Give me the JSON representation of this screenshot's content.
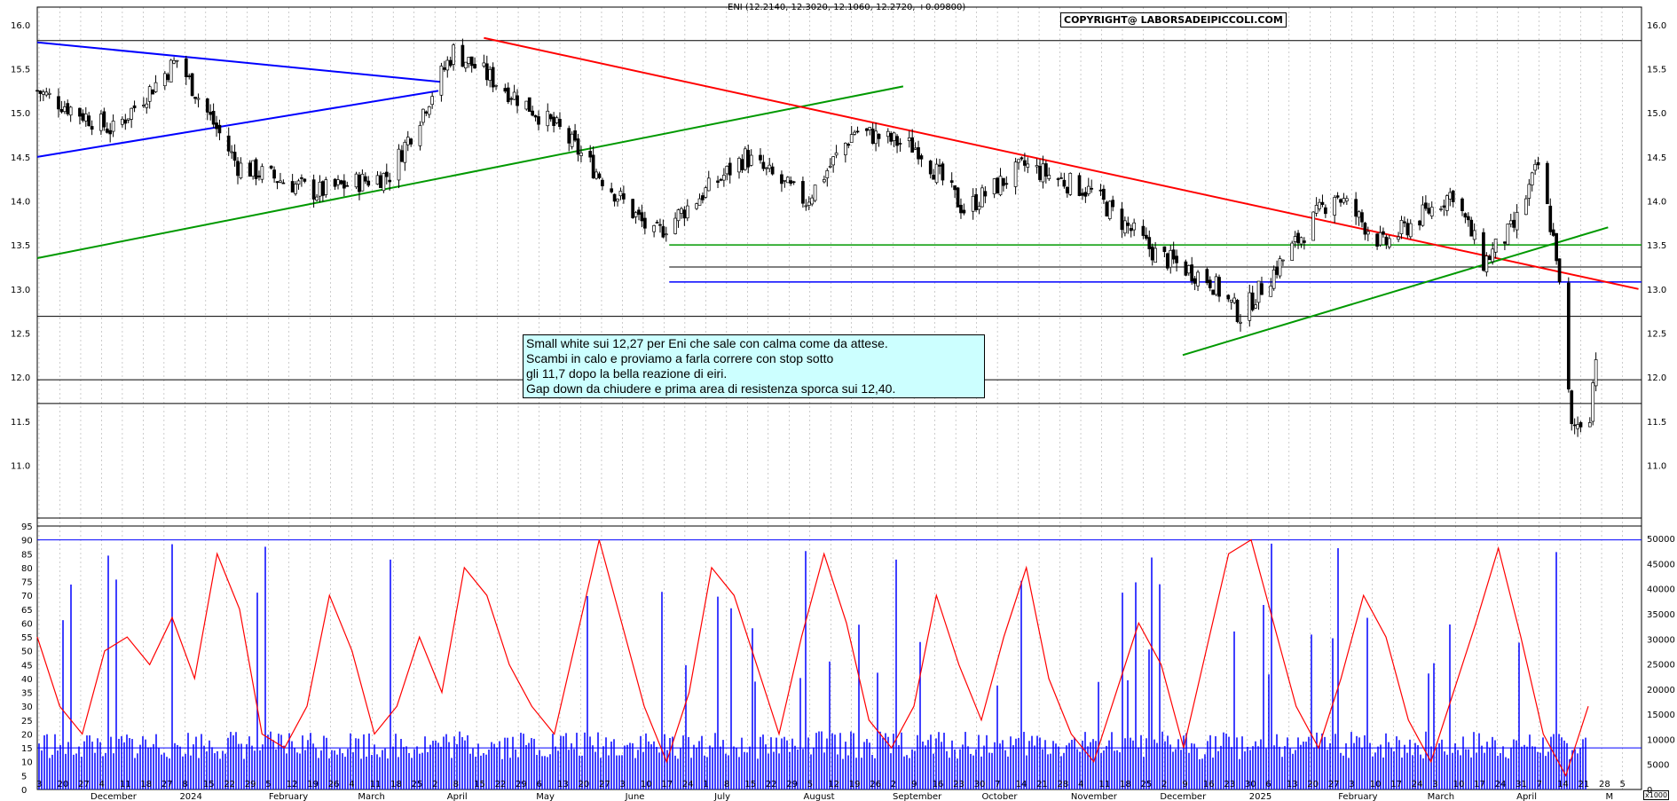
{
  "header": "ENI (12.2140, 12.3020, 12.1060, 12.2720, +0.09800)",
  "copyright": "COPYRIGHT@ LABORSADEIPICCOLI.COM",
  "note_lines": [
    "Small white sui 12,27 per Eni che sale con calma come da attese.",
    "Scambi in calo e proviamo a farla correre con stop sotto",
    "gli 11,7 dopo la bella reazione di eiri.",
    "Gap down da chiudere e prima area di resistenza sporca sui 12,40."
  ],
  "volume_unit": "x1000",
  "colors": {
    "up_candle": "#ffffff",
    "down_candle": "#000000",
    "trend_blue": "#0000ff",
    "trend_green": "#009900",
    "trend_red": "#ff0000",
    "oscillator": "#ff0000",
    "volume": "#0000ff",
    "grid": "#999999"
  },
  "chart_data": [
    {
      "type": "candlestick",
      "title": "ENI (12.2140, 12.3020, 12.1060, 12.2720, +0.09800)",
      "x_range": [
        "2023-11-20",
        "2025-05-01"
      ],
      "ylim": [
        10.4,
        16.2
      ],
      "yticks": [
        11.0,
        11.5,
        12.0,
        12.5,
        13.0,
        13.5,
        14.0,
        14.5,
        15.0,
        15.5,
        16.0
      ],
      "y_axis": "both sides",
      "grid": "vertical dotted",
      "x_tick_days": [
        "3",
        "20",
        "27",
        "4",
        "11",
        "18",
        "27",
        "8",
        "15",
        "22",
        "29",
        "5",
        "12",
        "19",
        "26",
        "4",
        "11",
        "18",
        "25",
        "2",
        "8",
        "15",
        "22",
        "29",
        "6",
        "13",
        "20",
        "27",
        "3",
        "10",
        "17",
        "24",
        "1",
        "8",
        "15",
        "22",
        "29",
        "5",
        "12",
        "19",
        "26",
        "2",
        "9",
        "16",
        "23",
        "30",
        "7",
        "14",
        "21",
        "28",
        "4",
        "11",
        "18",
        "25",
        "2",
        "9",
        "16",
        "23",
        "30",
        "6",
        "13",
        "20",
        "27",
        "3",
        "10",
        "17",
        "24",
        "3",
        "10",
        "17",
        "24",
        "31",
        "7",
        "14",
        "21",
        "28",
        "5"
      ],
      "x_month_labels": [
        "December",
        "2024",
        "February",
        "March",
        "April",
        "May",
        "June",
        "July",
        "August",
        "September",
        "October",
        "November",
        "December",
        "2025",
        "February",
        "March",
        "April",
        "M"
      ],
      "key_prices": [
        {
          "date": "2023-11-20",
          "close": 15.25
        },
        {
          "date": "2023-12-15",
          "close": 14.8
        },
        {
          "date": "2024-01-05",
          "close": 15.6
        },
        {
          "date": "2024-01-25",
          "close": 14.4
        },
        {
          "date": "2024-02-20",
          "close": 14.1
        },
        {
          "date": "2024-03-15",
          "close": 14.3
        },
        {
          "date": "2024-04-05",
          "close": 15.7
        },
        {
          "date": "2024-04-25",
          "close": 15.2
        },
        {
          "date": "2024-05-10",
          "close": 14.8
        },
        {
          "date": "2024-06-10",
          "close": 13.6
        },
        {
          "date": "2024-07-10",
          "close": 14.5
        },
        {
          "date": "2024-07-30",
          "close": 14.0
        },
        {
          "date": "2024-08-15",
          "close": 14.8
        },
        {
          "date": "2024-09-05",
          "close": 14.6
        },
        {
          "date": "2024-09-20",
          "close": 13.9
        },
        {
          "date": "2024-10-10",
          "close": 14.4
        },
        {
          "date": "2024-11-01",
          "close": 14.1
        },
        {
          "date": "2024-11-22",
          "close": 13.4
        },
        {
          "date": "2024-12-10",
          "close": 13.1
        },
        {
          "date": "2024-12-20",
          "close": 12.7
        },
        {
          "date": "2025-01-20",
          "close": 14.1
        },
        {
          "date": "2025-02-05",
          "close": 13.5
        },
        {
          "date": "2025-02-28",
          "close": 14.1
        },
        {
          "date": "2025-03-10",
          "close": 13.3
        },
        {
          "date": "2025-03-20",
          "close": 13.7
        },
        {
          "date": "2025-03-28",
          "close": 14.4
        },
        {
          "date": "2025-04-03",
          "close": 13.4
        },
        {
          "date": "2025-04-08",
          "close": 11.4
        },
        {
          "date": "2025-04-14",
          "close": 11.6
        },
        {
          "date": "2025-04-16",
          "close": 12.272
        }
      ],
      "last_candle": {
        "open": 12.214,
        "high": 12.302,
        "low": 12.106,
        "close": 12.272,
        "change": 0.098
      },
      "horizontal_levels": [
        {
          "value": 15.82,
          "color": "#000000"
        },
        {
          "value": 13.5,
          "color": "#009900"
        },
        {
          "value": 13.25,
          "color": "#000000"
        },
        {
          "value": 13.08,
          "color": "#0000ff"
        },
        {
          "value": 12.69,
          "color": "#000000"
        },
        {
          "value": 11.97,
          "color": "#000000"
        },
        {
          "value": 11.7,
          "color": "#000000"
        }
      ],
      "trendlines": [
        {
          "color": "#0000ff",
          "from": [
            "2023-11-20",
            15.8
          ],
          "to": [
            "2024-04-01",
            15.35
          ]
        },
        {
          "color": "#0000ff",
          "from": [
            "2023-11-20",
            14.5
          ],
          "to": [
            "2024-03-31",
            15.25
          ]
        },
        {
          "color": "#009900",
          "from": [
            "2023-11-20",
            13.35
          ],
          "to": [
            "2024-08-31",
            15.3
          ]
        },
        {
          "color": "#ff0000",
          "from": [
            "2024-04-15",
            15.85
          ],
          "to": [
            "2025-04-30",
            13.0
          ]
        },
        {
          "color": "#009900",
          "from": [
            "2024-12-01",
            12.25
          ],
          "to": [
            "2025-04-20",
            13.7
          ]
        }
      ]
    },
    {
      "type": "line",
      "name": "oscillator",
      "ylim": [
        0,
        95
      ],
      "yticks": [
        0,
        5,
        10,
        15,
        20,
        25,
        30,
        35,
        40,
        45,
        50,
        55,
        60,
        65,
        70,
        75,
        80,
        85,
        90,
        95
      ],
      "reference_lines": [
        90,
        15
      ],
      "approx_values": [
        55,
        30,
        20,
        50,
        55,
        45,
        62,
        40,
        85,
        65,
        20,
        15,
        30,
        70,
        50,
        20,
        30,
        55,
        35,
        80,
        70,
        45,
        30,
        20,
        55,
        90,
        60,
        30,
        10,
        35,
        80,
        70,
        45,
        20,
        55,
        85,
        60,
        25,
        15,
        30,
        70,
        45,
        25,
        55,
        80,
        40,
        20,
        10,
        35,
        60,
        45,
        15,
        50,
        85,
        90,
        60,
        30,
        15,
        40,
        70,
        55,
        25,
        10,
        35,
        60,
        87,
        55,
        20,
        5,
        30
      ]
    },
    {
      "type": "bar",
      "name": "volume",
      "ylim": [
        0,
        52500
      ],
      "yticks": [
        0,
        5000,
        10000,
        15000,
        20000,
        25000,
        30000,
        35000,
        40000,
        45000,
        50000
      ],
      "unit": "x1000",
      "typical": 10000,
      "peak": 50000
    }
  ]
}
